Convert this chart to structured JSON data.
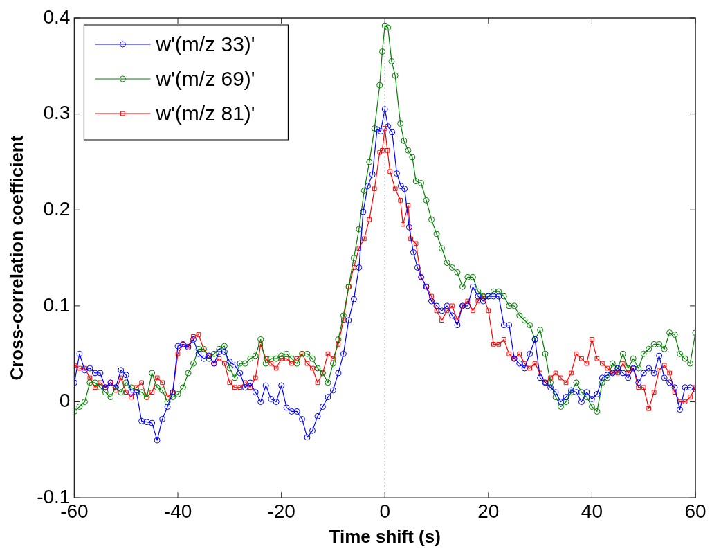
{
  "chart_data": {
    "type": "line",
    "xlabel": "Time shift (s)",
    "ylabel": "Cross-correlation coefficient",
    "xlim": [
      -60,
      60
    ],
    "xticks": [
      -60,
      -40,
      -20,
      0,
      20,
      40,
      60
    ],
    "ylim": [
      -0.1,
      0.4
    ],
    "yticks": [
      -0.1,
      0,
      0.1,
      0.2,
      0.3,
      0.4
    ],
    "grid": false,
    "legend": "top left",
    "ref_lines": [
      {
        "axis": "x",
        "value": 0,
        "line_style": "dotted",
        "color": "#808080"
      }
    ],
    "series": [
      {
        "name": "w'(m/z 33)'",
        "color": "#0000ff",
        "marker": "circle",
        "x": [
          -60,
          -59,
          -58,
          -57,
          -56,
          -55,
          -54,
          -53,
          -52,
          -51,
          -50,
          -49,
          -48,
          -47,
          -46,
          -45,
          -44,
          -43,
          -42,
          -41,
          -40,
          -39,
          -38,
          -37,
          -36,
          -35,
          -34,
          -33,
          -32,
          -31,
          -30,
          -29,
          -28,
          -27,
          -26,
          -25,
          -24,
          -23,
          -22,
          -21,
          -20,
          -19,
          -18,
          -17,
          -16,
          -15,
          -14,
          -13,
          -12,
          -11,
          -10,
          -9,
          -8,
          -7,
          -6,
          -5,
          -4.2,
          -3.3,
          -2.4,
          -1.5,
          -0.8,
          0,
          0.6,
          1.4,
          2.3,
          3.1,
          3.8,
          4.7,
          5.5,
          6.3,
          7,
          8,
          9,
          10,
          11,
          12,
          13,
          14,
          15,
          16,
          17,
          18,
          19,
          20,
          21,
          22,
          23,
          24,
          25,
          26,
          27,
          28,
          29,
          30,
          31,
          32,
          33,
          34,
          35,
          36,
          37,
          38,
          39,
          40,
          41,
          42,
          43,
          44,
          45,
          46,
          47,
          48,
          49,
          50,
          51,
          52,
          53,
          54,
          55,
          56,
          57,
          58,
          59,
          60
        ],
        "values": [
          0.02,
          0.05,
          0.033,
          0.035,
          0.03,
          0.03,
          0.015,
          0.02,
          0.015,
          0.033,
          0.028,
          0.01,
          0.01,
          -0.02,
          -0.021,
          -0.022,
          -0.04,
          -0.018,
          -0.005,
          0.01,
          0.058,
          0.06,
          0.057,
          0.065,
          0.05,
          0.045,
          0.048,
          0.04,
          0.052,
          0.052,
          0.042,
          0.038,
          0.03,
          0.015,
          0.02,
          0.01,
          0,
          0.017,
          0.003,
          0,
          0.017,
          -0.006,
          -0.01,
          -0.01,
          -0.018,
          -0.037,
          -0.03,
          -0.015,
          -0.005,
          0.005,
          0.012,
          0.03,
          0.05,
          0.085,
          0.107,
          0.14,
          0.198,
          0.225,
          0.237,
          0.284,
          0.282,
          0.305,
          0.287,
          0.281,
          0.238,
          0.225,
          0.222,
          0.182,
          0.156,
          0.14,
          0.13,
          0.12,
          0.105,
          0.1,
          0.095,
          0.1,
          0.09,
          0.08,
          0.1,
          0.1,
          0.12,
          0.11,
          0.105,
          0.11,
          0.11,
          0.11,
          0.08,
          0.08,
          0.045,
          0.04,
          0.035,
          0.05,
          0.065,
          0.025,
          0.02,
          0.015,
          0.01,
          0,
          0.005,
          0.012,
          0.01,
          0,
          0.01,
          0.003,
          0.008,
          0.025,
          0.028,
          0.03,
          0.035,
          0.03,
          0.025,
          0.035,
          0.02,
          0.03,
          0.035,
          0.03,
          0.048,
          0.025,
          0.02,
          0.015,
          -0.008,
          0.015,
          0.015,
          0.013
        ]
      },
      {
        "name": "w'(m/z 69)'",
        "color": "#008000",
        "marker": "circle",
        "x": [
          -60,
          -59,
          -58,
          -57,
          -56,
          -55,
          -54,
          -53,
          -52,
          -51,
          -50,
          -49,
          -48,
          -47,
          -46,
          -45,
          -44,
          -43,
          -42,
          -41,
          -40,
          -39,
          -38,
          -37,
          -36,
          -35,
          -34,
          -33,
          -32,
          -31,
          -30,
          -29,
          -28,
          -27,
          -26,
          -25,
          -24,
          -23,
          -22,
          -21,
          -20,
          -19,
          -18,
          -17,
          -16,
          -15,
          -14,
          -13,
          -12,
          -11,
          -10,
          -9,
          -8,
          -7,
          -6,
          -5,
          -4,
          -3,
          -2,
          -1,
          -0.5,
          0,
          0.6,
          1.3,
          2,
          3,
          3.7,
          4.5,
          5.3,
          6,
          7,
          8,
          9,
          10,
          11,
          12,
          13,
          14,
          15,
          16,
          17,
          18,
          19,
          20,
          21,
          22,
          23,
          24,
          25,
          26,
          27,
          28,
          29,
          30,
          31,
          32,
          33,
          34,
          35,
          36,
          37,
          38,
          39,
          40,
          41,
          42,
          43,
          44,
          45,
          46,
          47,
          48,
          49,
          50,
          51,
          52,
          53,
          54,
          55,
          56,
          57,
          58,
          59,
          60
        ],
        "values": [
          -0.01,
          -0.005,
          0,
          0.02,
          0.02,
          0.015,
          0.01,
          0.005,
          0.015,
          0.01,
          0.02,
          0.015,
          0.012,
          0.01,
          0.005,
          0.03,
          0.015,
          0.012,
          0,
          0.005,
          0.008,
          0.015,
          0.03,
          0.04,
          0.055,
          0.055,
          0.045,
          0.05,
          0.055,
          0.058,
          0.035,
          0.025,
          0.04,
          0.04,
          0.045,
          0.048,
          0.065,
          0.04,
          0.045,
          0.045,
          0.048,
          0.05,
          0.045,
          0.04,
          0.05,
          0.05,
          0.045,
          0.035,
          0.03,
          0.02,
          0.04,
          0.065,
          0.09,
          0.12,
          0.15,
          0.18,
          0.22,
          0.25,
          0.285,
          0.33,
          0.365,
          0.392,
          0.39,
          0.355,
          0.34,
          0.29,
          0.272,
          0.262,
          0.255,
          0.23,
          0.228,
          0.21,
          0.19,
          0.175,
          0.16,
          0.145,
          0.14,
          0.135,
          0.12,
          0.13,
          0.13,
          0.115,
          0.11,
          0.11,
          0.115,
          0.115,
          0.11,
          0.1,
          0.1,
          0.09,
          0.085,
          0.08,
          0.065,
          0.075,
          0.05,
          0.02,
          0.005,
          -0.005,
          0,
          0.01,
          0.02,
          0.01,
          0.005,
          -0.005,
          -0.01,
          0.02,
          0.025,
          0.04,
          0.035,
          0.05,
          0.035,
          0.045,
          0.035,
          0.05,
          0.055,
          0.06,
          0.06,
          0.055,
          0.072,
          0.07,
          0.05,
          0.045,
          0.04,
          0.072
        ]
      },
      {
        "name": "w'(m/z 81)'",
        "color": "#ff0000",
        "marker": "square",
        "x": [
          -60,
          -59,
          -58,
          -57,
          -56,
          -55,
          -54,
          -53,
          -52,
          -51,
          -50,
          -49,
          -48,
          -47,
          -46,
          -45,
          -44,
          -43,
          -42,
          -41,
          -40,
          -39,
          -38,
          -37,
          -36,
          -35,
          -34,
          -33,
          -32,
          -31,
          -30,
          -29,
          -28,
          -27,
          -26,
          -25,
          -24,
          -23,
          -22,
          -21,
          -20,
          -19,
          -18,
          -17,
          -16,
          -15,
          -14,
          -13,
          -12,
          -11,
          -10,
          -9,
          -8,
          -7,
          -6,
          -5,
          -4,
          -3,
          -2,
          -1,
          -0.5,
          0,
          0.5,
          1,
          2,
          3,
          3.5,
          4.5,
          5,
          6,
          7,
          8,
          9,
          10,
          11,
          12,
          13,
          14,
          15,
          16,
          17,
          18,
          19,
          20,
          21,
          22,
          23,
          24,
          25,
          26,
          27,
          28,
          29,
          30,
          31,
          32,
          33,
          34,
          35,
          36,
          37,
          38,
          39,
          40,
          41,
          42,
          43,
          44,
          45,
          46,
          47,
          48,
          49,
          50,
          51,
          52,
          53,
          54,
          55,
          56,
          57,
          58,
          59,
          60
        ],
        "values": [
          0.038,
          0.035,
          0.035,
          0.025,
          0.015,
          0.02,
          0.015,
          0.02,
          0.012,
          0.025,
          0.01,
          0.005,
          0.015,
          0.02,
          0.005,
          0.01,
          0.025,
          0.02,
          0.005,
          0.01,
          0.05,
          0.06,
          0.058,
          0.068,
          0.07,
          0.055,
          0.048,
          0.04,
          0.045,
          0.04,
          0.02,
          0.015,
          0.015,
          0.02,
          0.015,
          0.025,
          0.06,
          0.045,
          0.04,
          0.035,
          0.045,
          0.045,
          0.04,
          0.045,
          0.05,
          0.04,
          0.035,
          0.02,
          0.03,
          0.05,
          0.045,
          0.06,
          0.085,
          0.12,
          0.14,
          0.16,
          0.17,
          0.19,
          0.222,
          0.26,
          0.262,
          0.285,
          0.262,
          0.24,
          0.222,
          0.21,
          0.185,
          0.205,
          0.17,
          0.165,
          0.13,
          0.12,
          0.11,
          0.095,
          0.085,
          0.095,
          0.1,
          0.085,
          0.1,
          0.105,
          0.095,
          0.105,
          0.11,
          0.095,
          0.06,
          0.06,
          0.065,
          0.05,
          0.045,
          0.05,
          0.04,
          0.035,
          0.04,
          0.03,
          0.02,
          0.025,
          0.03,
          0.025,
          0.02,
          0.03,
          0.05,
          0.045,
          0.04,
          0.065,
          0.045,
          0.04,
          0.035,
          0.03,
          0.03,
          0.04,
          0.03,
          0.035,
          0.015,
          0.015,
          -0.007,
          0.01,
          0.033,
          0.038,
          0.03,
          0.01,
          0,
          0,
          0.005,
          0.015
        ]
      }
    ]
  }
}
